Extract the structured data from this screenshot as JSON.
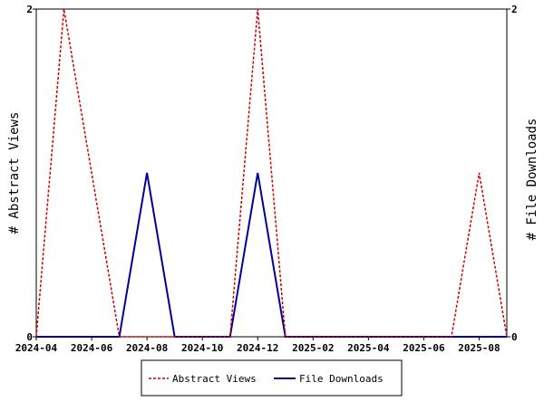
{
  "chart_data": {
    "type": "line",
    "x": [
      "2024-04",
      "2024-05",
      "2024-06",
      "2024-07",
      "2024-08",
      "2024-09",
      "2024-10",
      "2024-11",
      "2024-12",
      "2025-01",
      "2025-02",
      "2025-03",
      "2025-04",
      "2025-05",
      "2025-06",
      "2025-07",
      "2025-08",
      "2025-09"
    ],
    "x_tick_labels": [
      "2024-04",
      "2024-06",
      "2024-08",
      "2024-10",
      "2024-12",
      "2025-02",
      "2025-04",
      "2025-06",
      "2025-08"
    ],
    "series": [
      {
        "name": "Abstract Views",
        "axis": "left",
        "color": "#cc0000",
        "style": "dashed",
        "values": [
          0,
          2,
          1,
          0,
          0,
          0,
          0,
          0,
          2,
          0,
          0,
          0,
          0,
          0,
          0,
          0,
          1,
          0
        ]
      },
      {
        "name": "File Downloads",
        "axis": "right",
        "color": "#000099",
        "style": "solid",
        "values": [
          0,
          0,
          0,
          0,
          1,
          0,
          0,
          0,
          1,
          0,
          0,
          0,
          0,
          0,
          0,
          0,
          0,
          0
        ]
      }
    ],
    "ylabel": "# Abstract Views",
    "y2label": "# File Downloads",
    "ylim": [
      0,
      2
    ],
    "y2lim": [
      0,
      2
    ],
    "y_tick_labels": [
      "0",
      "2"
    ],
    "y2_tick_labels": [
      "0",
      "2"
    ],
    "grid": false,
    "legend_placement": "bottom-center"
  }
}
